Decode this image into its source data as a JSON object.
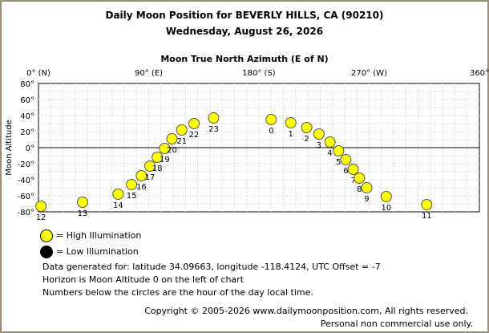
{
  "header": {
    "title": "Daily Moon Position for BEVERLY HILLS, CA (90210)",
    "date": "Wednesday, August 26, 2026"
  },
  "chart_data": {
    "type": "scatter",
    "title": "Moon True North Azimuth (E of N)",
    "xlabel": "Moon True North Azimuth (E of N)",
    "ylabel": "Moon Altitude",
    "xlim": [
      0,
      360
    ],
    "ylim": [
      -80,
      80
    ],
    "x_ticks": [
      {
        "value": 0,
        "label": "0° (N)"
      },
      {
        "value": 90,
        "label": "90° (E)"
      },
      {
        "value": 180,
        "label": "180° (S)"
      },
      {
        "value": 270,
        "label": "270° (W)"
      },
      {
        "value": 360,
        "label": "360°"
      }
    ],
    "y_ticks": [
      {
        "value": 80,
        "label": "80°"
      },
      {
        "value": 60,
        "label": "60°"
      },
      {
        "value": 40,
        "label": "40°"
      },
      {
        "value": 20,
        "label": "20°"
      },
      {
        "value": 0,
        "label": "0°"
      },
      {
        "value": -20,
        "label": "-20°"
      },
      {
        "value": -40,
        "label": "-40°"
      },
      {
        "value": -60,
        "label": "-60°"
      },
      {
        "value": -80,
        "label": "-80°"
      }
    ],
    "grid": true,
    "horizon_line": 0,
    "marker_color": "#ffff00",
    "points": [
      {
        "hour": "12",
        "x": 2,
        "y": -73
      },
      {
        "hour": "13",
        "x": 36,
        "y": -68
      },
      {
        "hour": "14",
        "x": 65,
        "y": -58
      },
      {
        "hour": "15",
        "x": 76,
        "y": -46
      },
      {
        "hour": "16",
        "x": 84,
        "y": -35
      },
      {
        "hour": "17",
        "x": 91,
        "y": -23
      },
      {
        "hour": "18",
        "x": 97,
        "y": -12
      },
      {
        "hour": "19",
        "x": 103,
        "y": -1
      },
      {
        "hour": "20",
        "x": 109,
        "y": 11
      },
      {
        "hour": "21",
        "x": 117,
        "y": 22
      },
      {
        "hour": "22",
        "x": 127,
        "y": 30
      },
      {
        "hour": "23",
        "x": 143,
        "y": 37
      },
      {
        "hour": "0",
        "x": 190,
        "y": 35
      },
      {
        "hour": "1",
        "x": 206,
        "y": 31
      },
      {
        "hour": "2",
        "x": 219,
        "y": 25
      },
      {
        "hour": "3",
        "x": 229,
        "y": 17
      },
      {
        "hour": "4",
        "x": 238,
        "y": 7
      },
      {
        "hour": "5",
        "x": 245,
        "y": -4
      },
      {
        "hour": "6",
        "x": 251,
        "y": -15
      },
      {
        "hour": "7",
        "x": 257,
        "y": -27
      },
      {
        "hour": "8",
        "x": 262,
        "y": -38
      },
      {
        "hour": "9",
        "x": 268,
        "y": -50
      },
      {
        "hour": "10",
        "x": 284,
        "y": -61
      },
      {
        "hour": "11",
        "x": 317,
        "y": -71
      }
    ]
  },
  "legend": {
    "high": {
      "label": "= High Illumination",
      "color": "#ffff00"
    },
    "low": {
      "label": "= Low Illumination",
      "color": "#000000"
    }
  },
  "notes": {
    "line1": "Data generated for: latitude 34.09663, longitude -118.4124, UTC Offset = -7",
    "line2": "Horizon is Moon Altitude 0 on the left of chart",
    "line3": "Numbers below the circles are the hour of the day local time."
  },
  "footer": {
    "copyright": "Copyright © 2005-2026 www.dailymoonposition.com, All rights reserved.",
    "personal": "Personal non commercial use only."
  }
}
